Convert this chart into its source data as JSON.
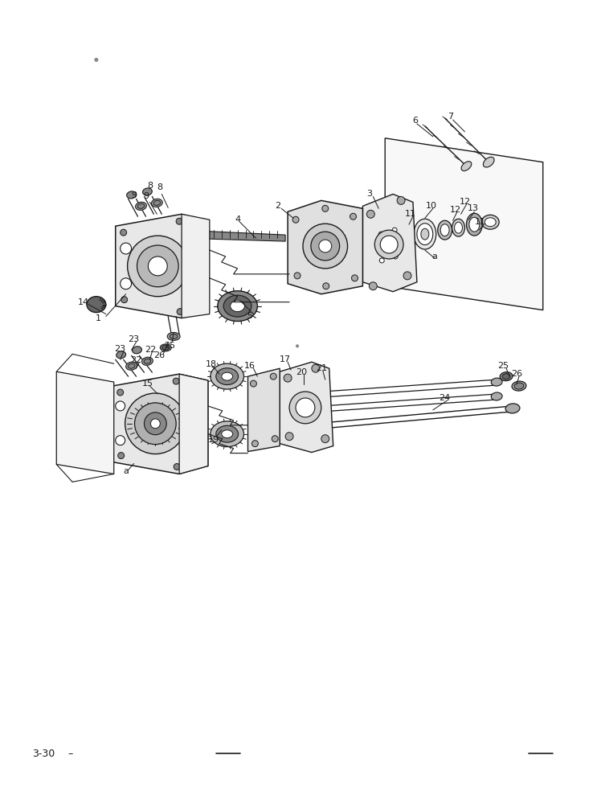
{
  "bg_color": "#ffffff",
  "line_color": "#1a1a1a",
  "fig_width": 7.48,
  "fig_height": 9.85,
  "dpi": 100,
  "page_number": "3-30"
}
